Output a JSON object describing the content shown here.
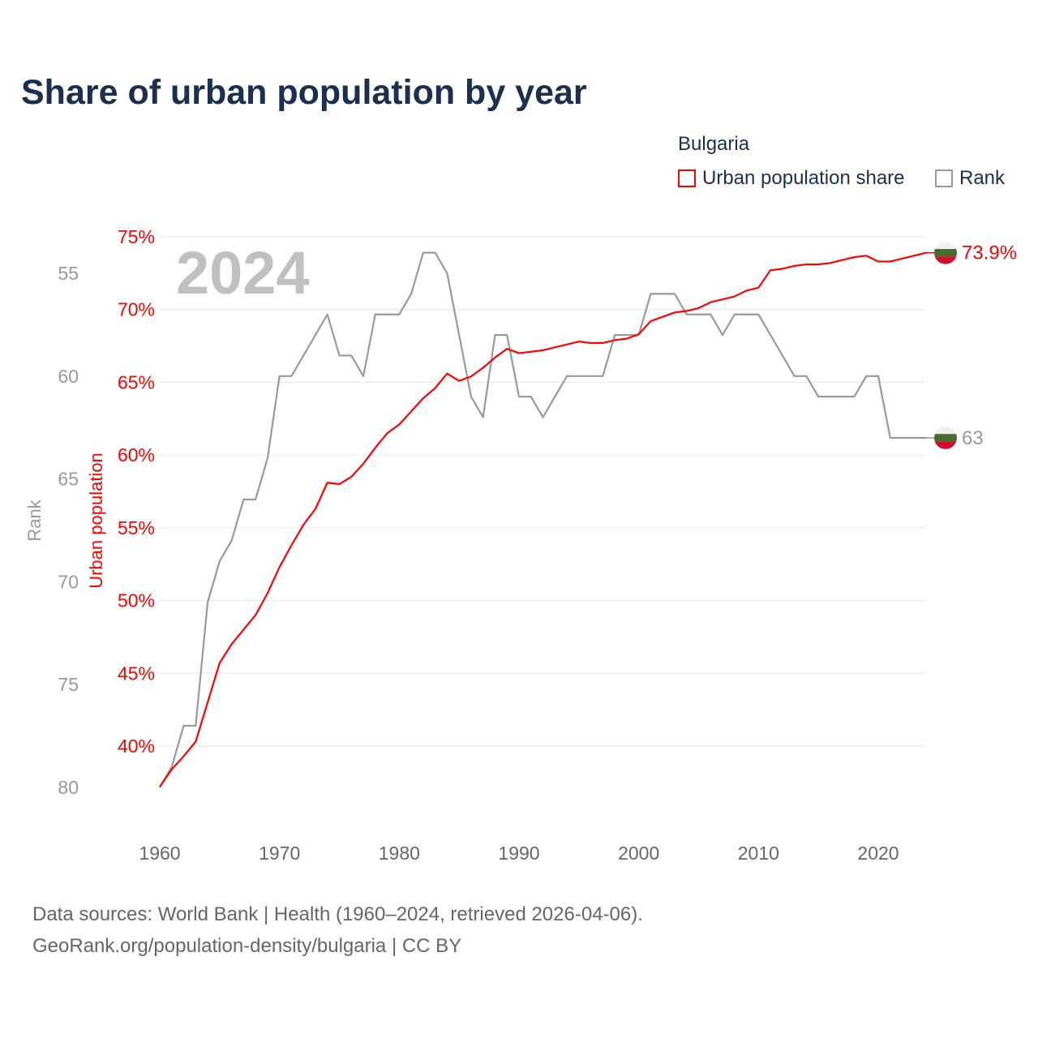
{
  "title": "Share of urban population by year",
  "legend": {
    "title": "Bulgaria",
    "items": [
      {
        "label": "Urban population share",
        "color": "#ff0000"
      },
      {
        "label": "Rank",
        "color": "#999999"
      }
    ]
  },
  "year_watermark": "2024",
  "source": {
    "line1": "Data sources: World Bank | Health (1960–2024, retrieved 2026-04-06).",
    "line2": "GeoRank.org/population-density/bulgaria | CC BY"
  },
  "chart_data": {
    "type": "line",
    "title": "Share of urban population by year",
    "xlabel": "",
    "ylabel_left_outer": "Rank",
    "ylabel_left_inner": "Urban population",
    "x_ticks": [
      "1960",
      "1970",
      "1980",
      "1990",
      "2000",
      "2010",
      "2020"
    ],
    "urban_ticks": [
      "40%",
      "45%",
      "50%",
      "55%",
      "60%",
      "65%",
      "70%",
      "75%"
    ],
    "urban_tick_values": [
      40,
      45,
      50,
      55,
      60,
      65,
      70,
      75
    ],
    "rank_ticks": [
      "55",
      "60",
      "65",
      "70",
      "75",
      "80"
    ],
    "rank_tick_values": [
      55,
      60,
      65,
      70,
      75,
      80
    ],
    "xlim": [
      1960,
      2024
    ],
    "urban_ylim": [
      37.2,
      75
    ],
    "rank_ylim": [
      55,
      80
    ],
    "grid": true,
    "legend_position": "top-right",
    "x": [
      1960,
      1961,
      1962,
      1963,
      1964,
      1965,
      1966,
      1967,
      1968,
      1969,
      1970,
      1971,
      1972,
      1973,
      1974,
      1975,
      1976,
      1977,
      1978,
      1979,
      1980,
      1981,
      1982,
      1983,
      1984,
      1985,
      1986,
      1987,
      1988,
      1989,
      1990,
      1991,
      1992,
      1993,
      1994,
      1995,
      1996,
      1997,
      1998,
      1999,
      2000,
      2001,
      2002,
      2003,
      2004,
      2005,
      2006,
      2007,
      2008,
      2009,
      2010,
      2011,
      2012,
      2013,
      2014,
      2015,
      2016,
      2017,
      2018,
      2019,
      2020,
      2021,
      2022,
      2023,
      2024
    ],
    "series": [
      {
        "name": "Urban population share",
        "unit": "%",
        "color": "#ff0000",
        "end_label": "73.9%",
        "values": [
          37.2,
          38.4,
          39.3,
          40.3,
          43.0,
          45.7,
          47.0,
          48.0,
          49.0,
          50.5,
          52.3,
          53.8,
          55.2,
          56.3,
          58.1,
          58.0,
          58.5,
          59.4,
          60.5,
          61.5,
          62.1,
          63.0,
          63.9,
          64.6,
          65.6,
          65.1,
          65.4,
          66.0,
          66.7,
          67.3,
          67.0,
          67.1,
          67.2,
          67.4,
          67.6,
          67.8,
          67.7,
          67.7,
          67.9,
          68.0,
          68.3,
          69.2,
          69.5,
          69.8,
          69.9,
          70.1,
          70.5,
          70.7,
          70.9,
          71.3,
          71.5,
          72.7,
          72.8,
          73.0,
          73.1,
          73.1,
          73.2,
          73.4,
          73.6,
          73.7,
          73.3,
          73.3,
          73.5,
          73.7,
          73.9
        ]
      },
      {
        "name": "Rank",
        "color": "#999999",
        "end_label": "63",
        "values": [
          80,
          79,
          77,
          77,
          71,
          69,
          68,
          66,
          66,
          64,
          60,
          60,
          59,
          58,
          57,
          59,
          59,
          60,
          57,
          57,
          57,
          56,
          54,
          54,
          55,
          58,
          61,
          62,
          58,
          58,
          61,
          61,
          62,
          61,
          60,
          60,
          60,
          60,
          58,
          58,
          58,
          56,
          56,
          56,
          57,
          57,
          57,
          58,
          57,
          57,
          57,
          58,
          59,
          60,
          60,
          61,
          61,
          61,
          61,
          60,
          60,
          63,
          63,
          63,
          63
        ]
      }
    ]
  }
}
